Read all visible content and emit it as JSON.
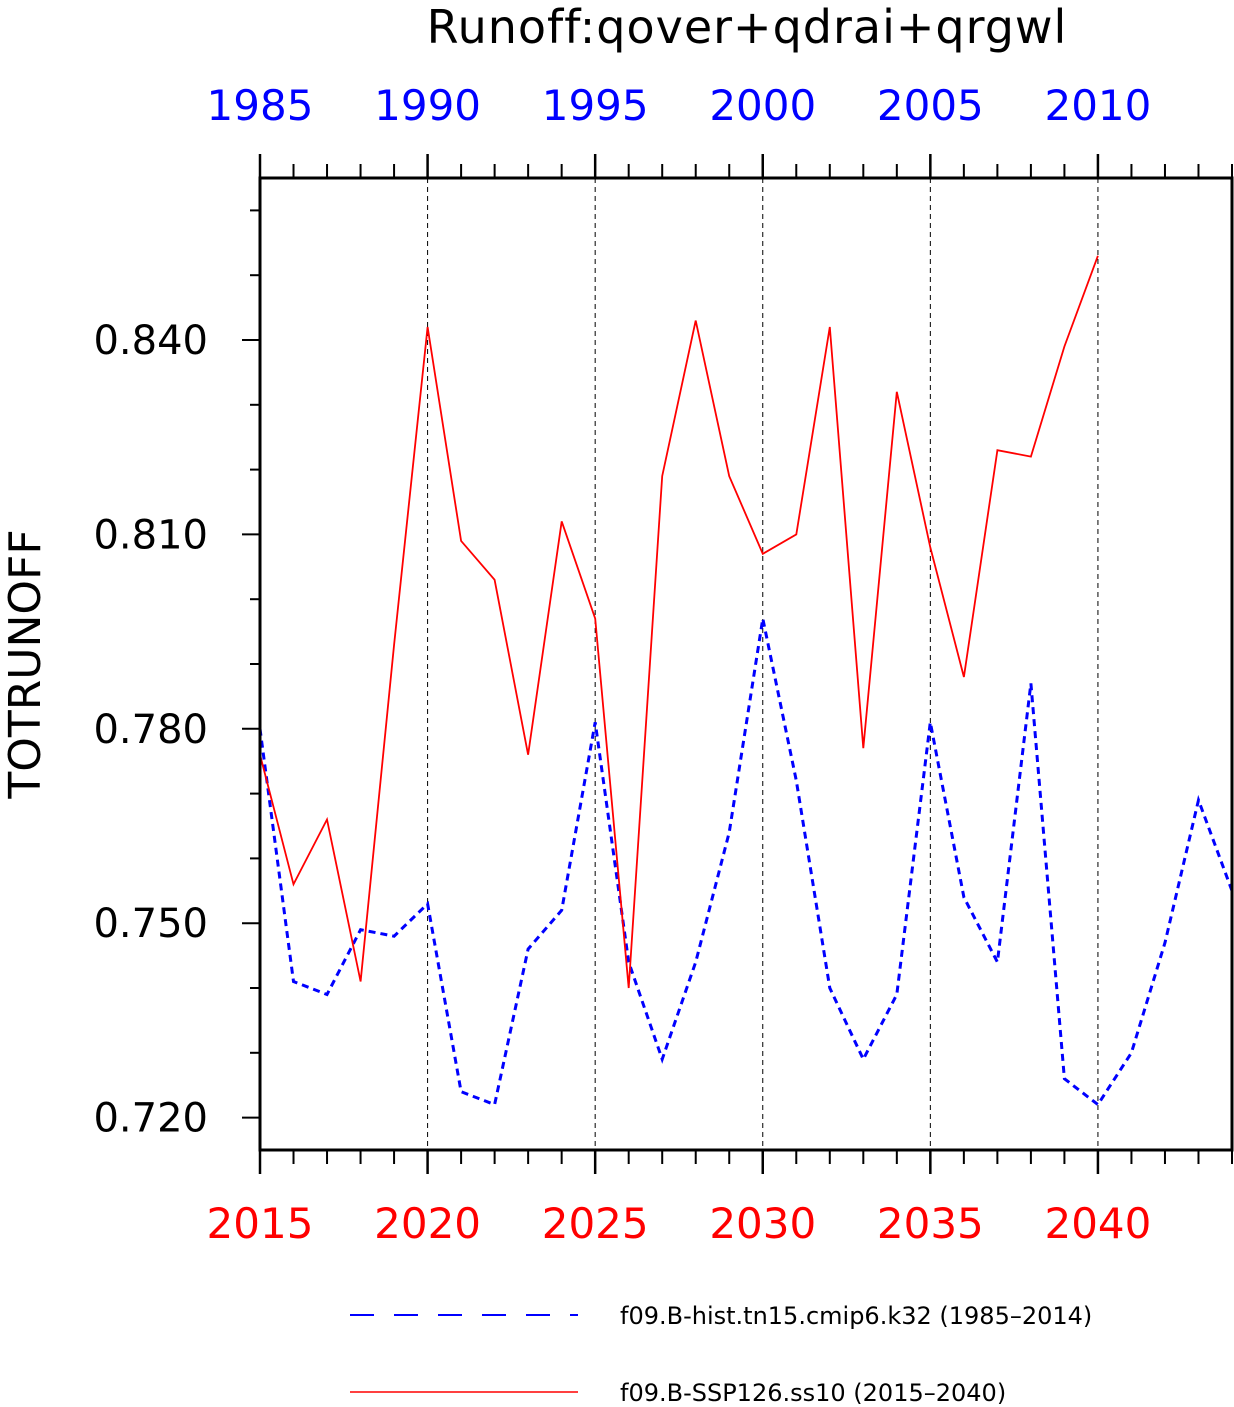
{
  "chart_data": {
    "type": "line",
    "title": "Runoff:qover+qdrai+qrgwl",
    "ylabel": "TOTRUNOFF",
    "ylim": [
      0.715,
      0.865
    ],
    "yticks": [
      0.72,
      0.75,
      0.78,
      0.81,
      0.84
    ],
    "ytick_labels": [
      "0.720",
      "0.750",
      "0.780",
      "0.810",
      "0.840"
    ],
    "bottom_axis": {
      "range": [
        2015,
        2044
      ],
      "ticks": [
        2015,
        2020,
        2025,
        2030,
        2035,
        2040
      ],
      "tick_labels": [
        "2015",
        "2020",
        "2025",
        "2030",
        "2035",
        "2040"
      ],
      "color": "#ff0000"
    },
    "top_axis": {
      "range": [
        1985,
        2014
      ],
      "ticks": [
        1985,
        1990,
        1995,
        2000,
        2005,
        2010
      ],
      "tick_labels": [
        "1985",
        "1990",
        "1995",
        "2000",
        "2005",
        "2010"
      ],
      "color": "#0000ff"
    },
    "vertical_gridlines": [
      2020,
      2025,
      2030,
      2035,
      2040
    ],
    "series": [
      {
        "name": "f09.B-hist.tn15.cmip6.k32 (1985–2014)",
        "color": "#0000ff",
        "style": "dashed",
        "axis": "top",
        "x": [
          1985,
          1986,
          1987,
          1988,
          1989,
          1990,
          1991,
          1992,
          1993,
          1994,
          1995,
          1996,
          1997,
          1998,
          1999,
          2000,
          2001,
          2002,
          2003,
          2004,
          2005,
          2006,
          2007,
          2008,
          2009,
          2010,
          2011,
          2012,
          2013,
          2014
        ],
        "y": [
          0.78,
          0.741,
          0.739,
          0.749,
          0.748,
          0.753,
          0.724,
          0.722,
          0.746,
          0.752,
          0.781,
          0.744,
          0.729,
          0.744,
          0.764,
          0.797,
          0.772,
          0.74,
          0.729,
          0.739,
          0.781,
          0.754,
          0.744,
          0.787,
          0.726,
          0.722,
          0.73,
          0.747,
          0.769,
          0.755
        ]
      },
      {
        "name": "f09.B-SSP126.ss10 (2015–2040)",
        "color": "#ff0000",
        "style": "solid",
        "axis": "bottom",
        "x": [
          2015,
          2016,
          2017,
          2018,
          2019,
          2020,
          2021,
          2022,
          2023,
          2024,
          2025,
          2026,
          2027,
          2028,
          2029,
          2030,
          2031,
          2032,
          2033,
          2034,
          2035,
          2036,
          2037,
          2038,
          2039,
          2040
        ],
        "y": [
          0.776,
          0.756,
          0.766,
          0.741,
          0.793,
          0.842,
          0.809,
          0.803,
          0.776,
          0.812,
          0.797,
          0.74,
          0.819,
          0.843,
          0.819,
          0.807,
          0.81,
          0.842,
          0.777,
          0.832,
          0.808,
          0.788,
          0.823,
          0.822,
          0.839,
          0.853
        ]
      }
    ],
    "legend_position": "bottom"
  }
}
